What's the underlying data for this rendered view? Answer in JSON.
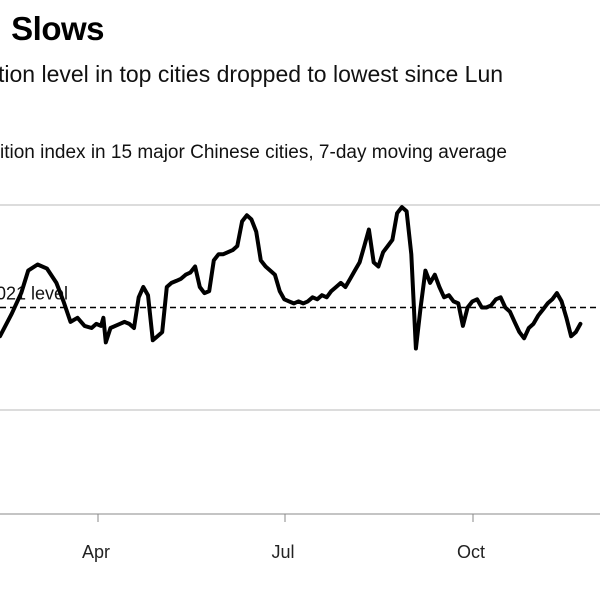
{
  "header": {
    "title": ": Slows",
    "subtitle": "tion level in top cities dropped to lowest since Lun",
    "caption": "ition index in 15 major Chinese cities, 7-day moving average"
  },
  "chart_data": {
    "type": "line",
    "title": ": Slows",
    "subtitle": "tion level in top cities dropped to lowest since Lun",
    "xlabel": "",
    "ylabel": "",
    "x_ticks": [
      "Apr",
      "Jul",
      "Oct"
    ],
    "reference_line": {
      "label": "021 level",
      "style": "dashed",
      "value": 1.0
    },
    "ylim": [
      0.5,
      1.5
    ],
    "grid": "horizontal",
    "legend": "none",
    "series": [
      {
        "line_color": "#000000",
        "points": [
          [
            0.0,
            0.86
          ],
          [
            0.25,
            0.97
          ],
          [
            0.45,
            1.07
          ],
          [
            0.6,
            1.18
          ],
          [
            0.8,
            1.21
          ],
          [
            1.0,
            1.19
          ],
          [
            1.2,
            1.12
          ],
          [
            1.35,
            1.03
          ],
          [
            1.5,
            0.93
          ],
          [
            1.65,
            0.95
          ],
          [
            1.8,
            0.91
          ],
          [
            1.95,
            0.9
          ],
          [
            2.05,
            0.92
          ],
          [
            2.15,
            0.91
          ],
          [
            2.2,
            0.95
          ],
          [
            2.25,
            0.83
          ],
          [
            2.35,
            0.9
          ],
          [
            2.45,
            0.91
          ],
          [
            2.55,
            0.92
          ],
          [
            2.65,
            0.93
          ],
          [
            2.75,
            0.92
          ],
          [
            2.85,
            0.9
          ],
          [
            2.95,
            1.05
          ],
          [
            3.05,
            1.1
          ],
          [
            3.15,
            1.06
          ],
          [
            3.25,
            0.84
          ],
          [
            3.35,
            0.86
          ],
          [
            3.45,
            0.88
          ],
          [
            3.55,
            1.1
          ],
          [
            3.65,
            1.12
          ],
          [
            3.75,
            1.13
          ],
          [
            3.85,
            1.14
          ],
          [
            3.95,
            1.16
          ],
          [
            4.05,
            1.17
          ],
          [
            4.15,
            1.2
          ],
          [
            4.25,
            1.1
          ],
          [
            4.35,
            1.07
          ],
          [
            4.45,
            1.08
          ],
          [
            4.55,
            1.23
          ],
          [
            4.65,
            1.26
          ],
          [
            4.75,
            1.26
          ],
          [
            4.85,
            1.27
          ],
          [
            4.95,
            1.28
          ],
          [
            5.05,
            1.3
          ],
          [
            5.15,
            1.42
          ],
          [
            5.25,
            1.45
          ],
          [
            5.35,
            1.43
          ],
          [
            5.45,
            1.37
          ],
          [
            5.55,
            1.23
          ],
          [
            5.65,
            1.2
          ],
          [
            5.75,
            1.18
          ],
          [
            5.85,
            1.16
          ],
          [
            5.95,
            1.08
          ],
          [
            6.05,
            1.04
          ],
          [
            6.15,
            1.03
          ],
          [
            6.25,
            1.02
          ],
          [
            6.35,
            1.03
          ],
          [
            6.45,
            1.02
          ],
          [
            6.55,
            1.03
          ],
          [
            6.65,
            1.05
          ],
          [
            6.75,
            1.04
          ],
          [
            6.85,
            1.06
          ],
          [
            6.95,
            1.05
          ],
          [
            7.05,
            1.08
          ],
          [
            7.15,
            1.1
          ],
          [
            7.25,
            1.12
          ],
          [
            7.35,
            1.1
          ],
          [
            7.45,
            1.14
          ],
          [
            7.55,
            1.18
          ],
          [
            7.65,
            1.22
          ],
          [
            7.75,
            1.3
          ],
          [
            7.85,
            1.38
          ],
          [
            7.95,
            1.22
          ],
          [
            8.05,
            1.2
          ],
          [
            8.15,
            1.27
          ],
          [
            8.25,
            1.3
          ],
          [
            8.35,
            1.33
          ],
          [
            8.45,
            1.46
          ],
          [
            8.55,
            1.49
          ],
          [
            8.65,
            1.47
          ],
          [
            8.75,
            1.26
          ],
          [
            8.85,
            0.8
          ],
          [
            8.95,
            1.0
          ],
          [
            9.05,
            1.18
          ],
          [
            9.15,
            1.12
          ],
          [
            9.25,
            1.16
          ],
          [
            9.35,
            1.1
          ],
          [
            9.45,
            1.05
          ],
          [
            9.55,
            1.06
          ],
          [
            9.65,
            1.03
          ],
          [
            9.75,
            1.02
          ],
          [
            9.85,
            0.91
          ],
          [
            9.95,
            1.0
          ],
          [
            10.05,
            1.03
          ],
          [
            10.15,
            1.04
          ],
          [
            10.25,
            1.0
          ],
          [
            10.35,
            1.0
          ],
          [
            10.45,
            1.01
          ],
          [
            10.55,
            1.04
          ],
          [
            10.65,
            1.05
          ],
          [
            10.75,
            1.0
          ],
          [
            10.85,
            0.98
          ],
          [
            10.95,
            0.93
          ],
          [
            11.05,
            0.88
          ],
          [
            11.15,
            0.85
          ],
          [
            11.25,
            0.9
          ],
          [
            11.35,
            0.92
          ],
          [
            11.45,
            0.96
          ],
          [
            11.55,
            0.99
          ],
          [
            11.65,
            1.02
          ],
          [
            11.75,
            1.04
          ],
          [
            11.85,
            1.07
          ],
          [
            11.95,
            1.03
          ],
          [
            12.05,
            0.95
          ],
          [
            12.15,
            0.86
          ],
          [
            12.25,
            0.88
          ],
          [
            12.35,
            0.92
          ]
        ]
      }
    ]
  }
}
